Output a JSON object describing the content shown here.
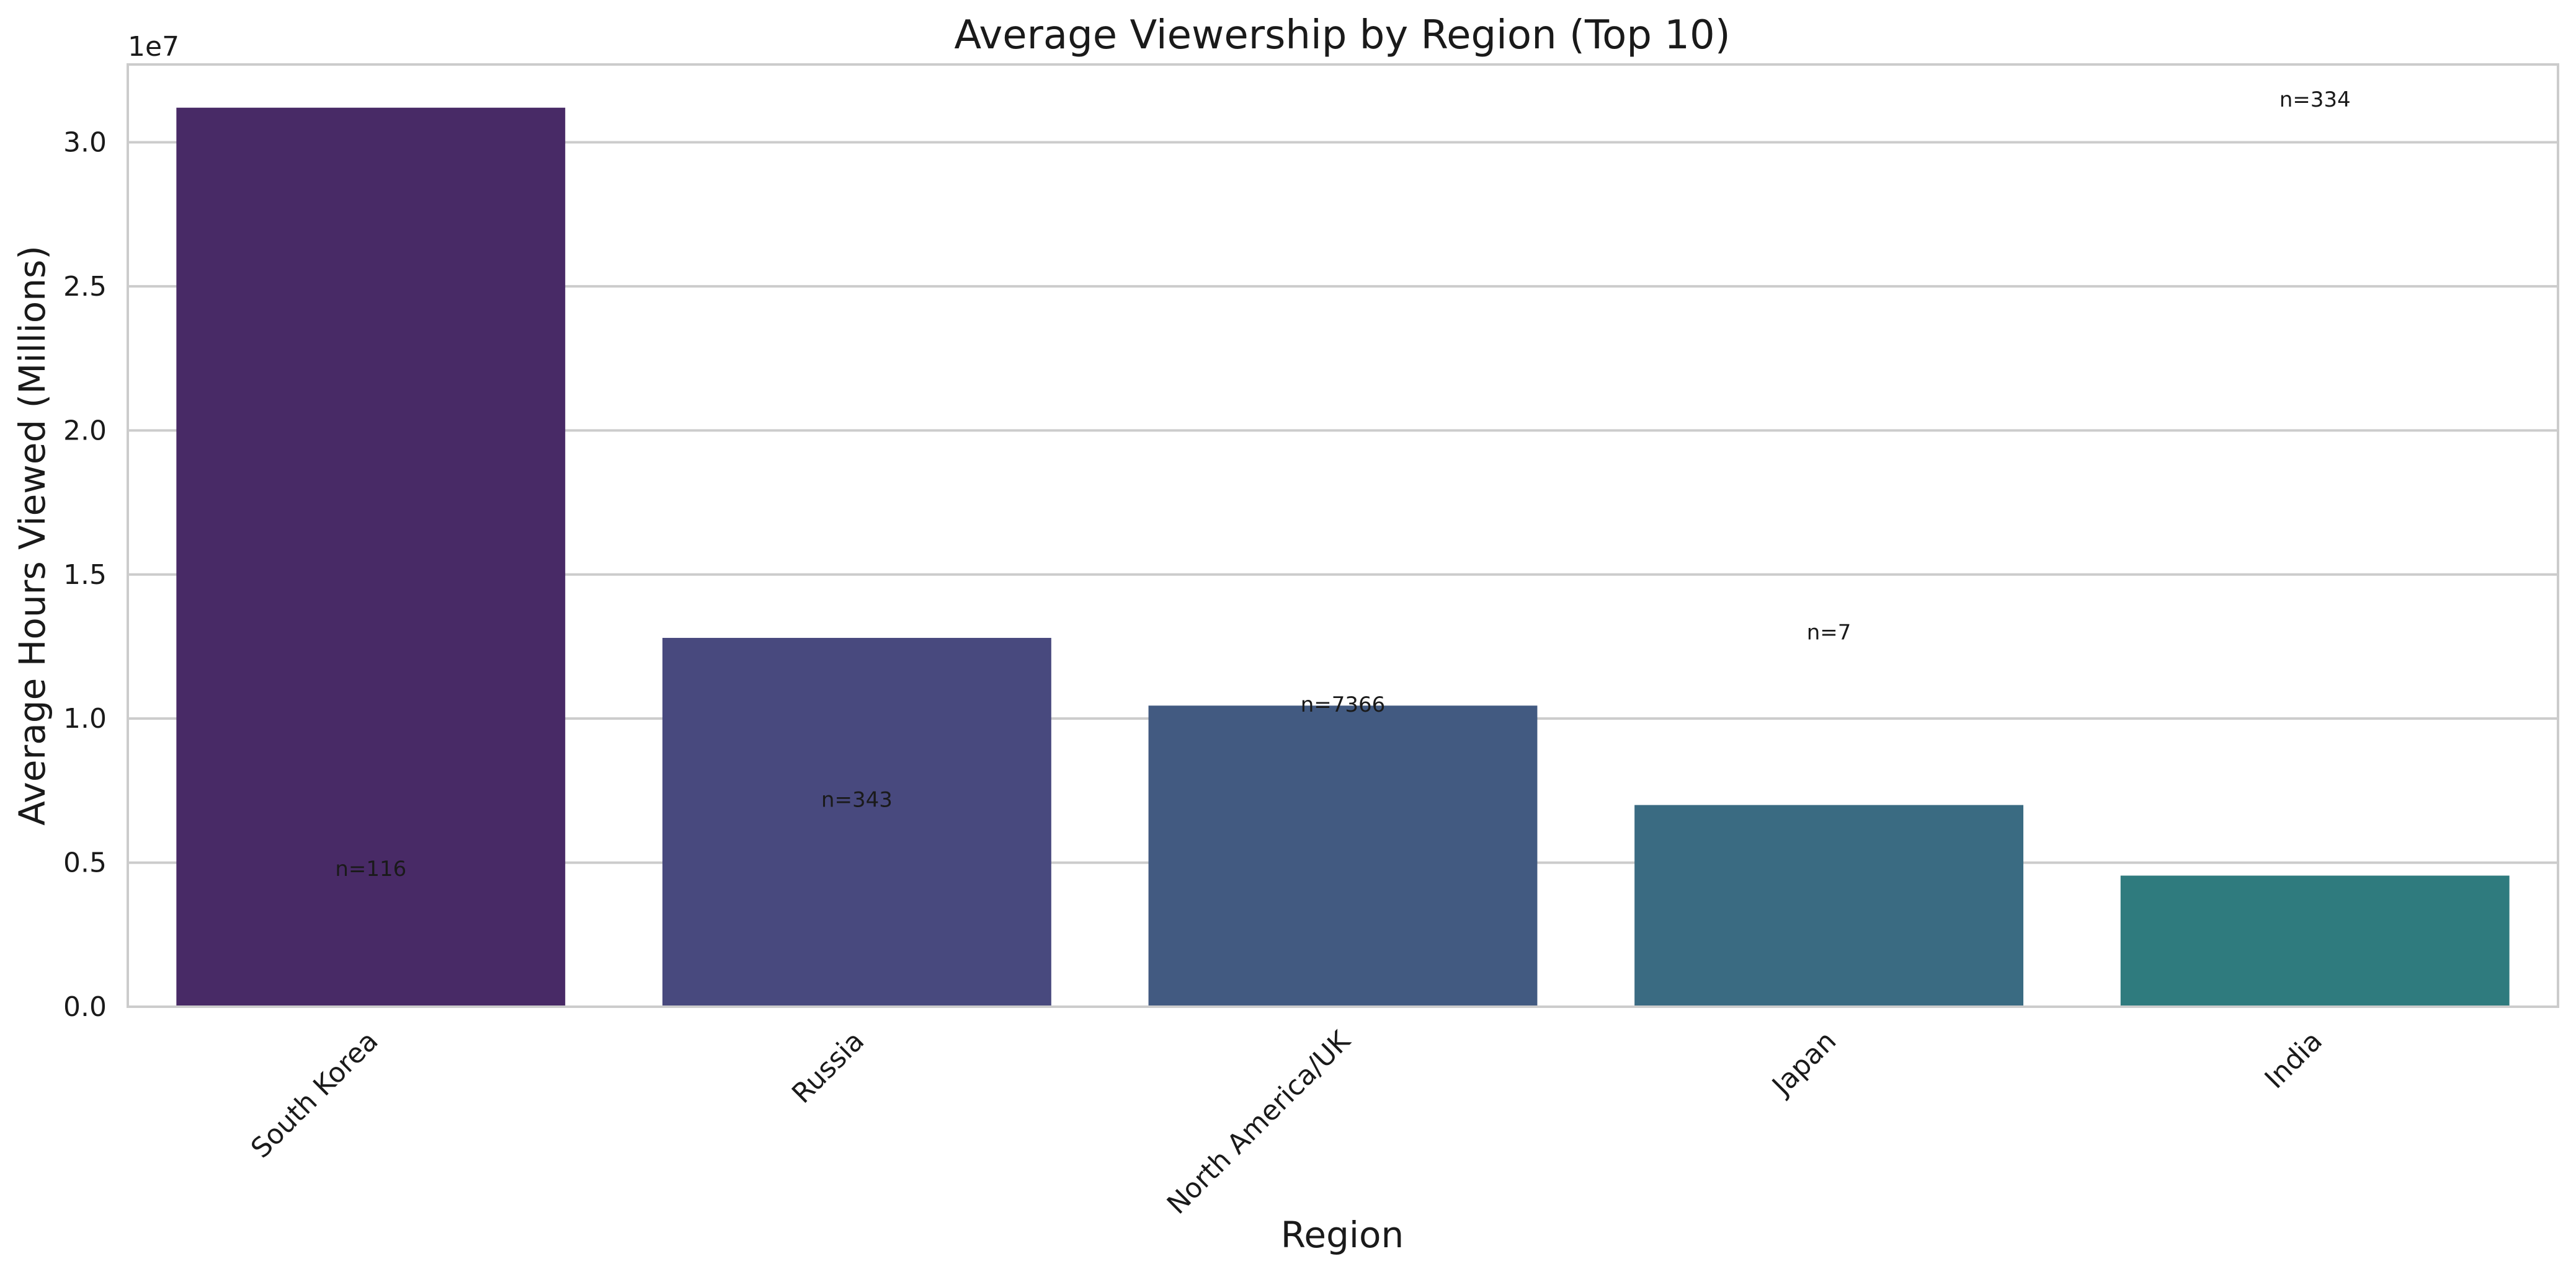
{
  "chart_data": {
    "type": "bar",
    "title": "Average Viewership by Region (Top 10)",
    "xlabel": "Region",
    "ylabel": "Average Hours Viewed (Millions)",
    "y_offset_label": "1e7",
    "categories": [
      "South Korea",
      "Russia",
      "North America/UK",
      "Japan",
      "India"
    ],
    "values": [
      31200000,
      12800000,
      10450000,
      7000000,
      4550000
    ],
    "annotations": [
      "n=116",
      "n=343",
      "n=7366",
      "n=7",
      "n=334"
    ],
    "annotation_y": [
      4800000,
      7200000,
      10500000,
      13000000,
      31500000
    ],
    "ylim": [
      0,
      32700000
    ],
    "yticks": [
      0,
      5000000,
      10000000,
      15000000,
      20000000,
      25000000,
      30000000
    ],
    "ytick_labels": [
      "0.0",
      "0.5",
      "1.0",
      "1.5",
      "2.0",
      "2.5",
      "3.0"
    ],
    "grid": true,
    "colors": [
      "#482a66",
      "#48497e",
      "#425a81",
      "#3a6b82",
      "#2f7b7e"
    ],
    "grid_color": "#cccccc",
    "frame_color": "#cccccc"
  }
}
